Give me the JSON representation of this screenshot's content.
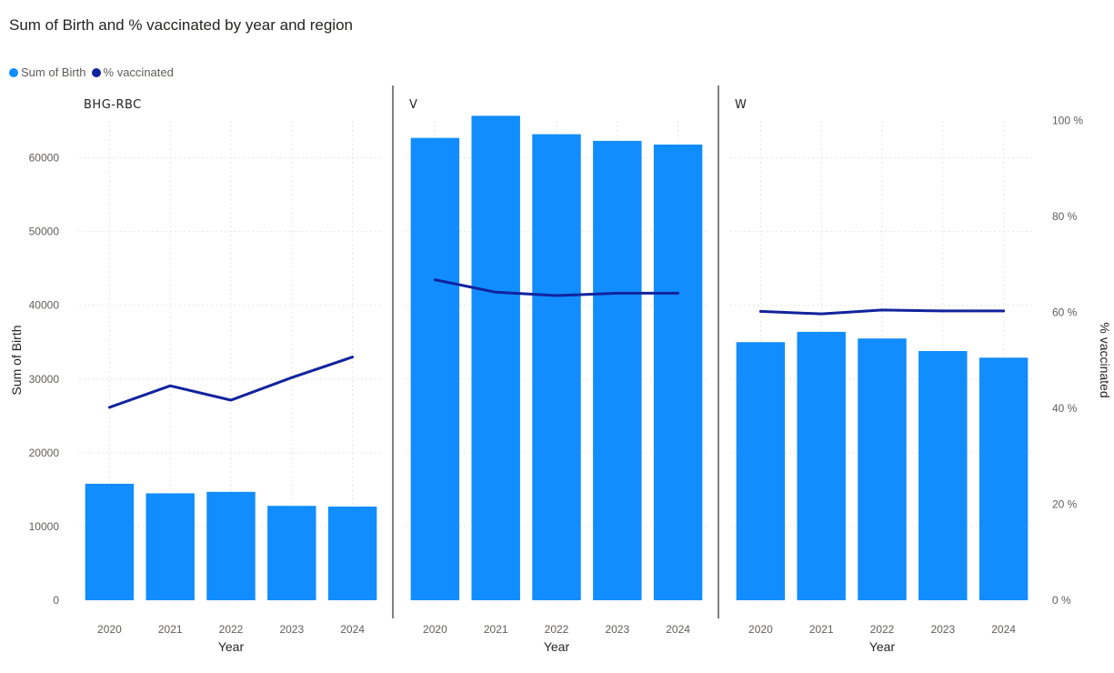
{
  "title": "Sum of Birth and % vaccinated by year and region",
  "legend": [
    {
      "label": "Sum of Birth",
      "color": "#118dff"
    },
    {
      "label": "% vaccinated",
      "color": "#12239e"
    }
  ],
  "chart_data": {
    "type": "bar",
    "title": "Sum of Birth and % vaccinated by year and region",
    "xlabel": "Year",
    "ylabel": "Sum of Birth",
    "y2label": "% vaccinated",
    "ylim": [
      0,
      65000
    ],
    "y_ticks": [
      0,
      10000,
      20000,
      30000,
      40000,
      50000,
      60000
    ],
    "y2lim": [
      0,
      100
    ],
    "y2_ticks": [
      "0 %",
      "20 %",
      "40 %",
      "60 %",
      "80 %",
      "100 %"
    ],
    "y2_tick_values": [
      0,
      20,
      40,
      60,
      80,
      100
    ],
    "categories": [
      "2020",
      "2021",
      "2022",
      "2023",
      "2024"
    ],
    "panels": [
      {
        "region": "BHG-RBC",
        "series": [
          {
            "name": "Sum of Birth",
            "type": "bar",
            "values": [
              15800,
              14500,
              14700,
              12800,
              12700
            ]
          },
          {
            "name": "% vaccinated",
            "type": "line",
            "values": [
              40.2,
              44.7,
              41.7,
              46.4,
              50.7
            ]
          }
        ]
      },
      {
        "region": "V",
        "series": [
          {
            "name": "Sum of Birth",
            "type": "bar",
            "values": [
              62700,
              65700,
              63200,
              62300,
              61800
            ]
          },
          {
            "name": "% vaccinated",
            "type": "line",
            "values": [
              66.8,
              64.2,
              63.5,
              64.0,
              64.0
            ]
          }
        ]
      },
      {
        "region": "W",
        "series": [
          {
            "name": "Sum of Birth",
            "type": "bar",
            "values": [
              35000,
              36400,
              35500,
              33800,
              32900
            ]
          },
          {
            "name": "% vaccinated",
            "type": "line",
            "values": [
              60.2,
              59.7,
              60.5,
              60.3,
              60.3
            ]
          }
        ]
      }
    ]
  }
}
